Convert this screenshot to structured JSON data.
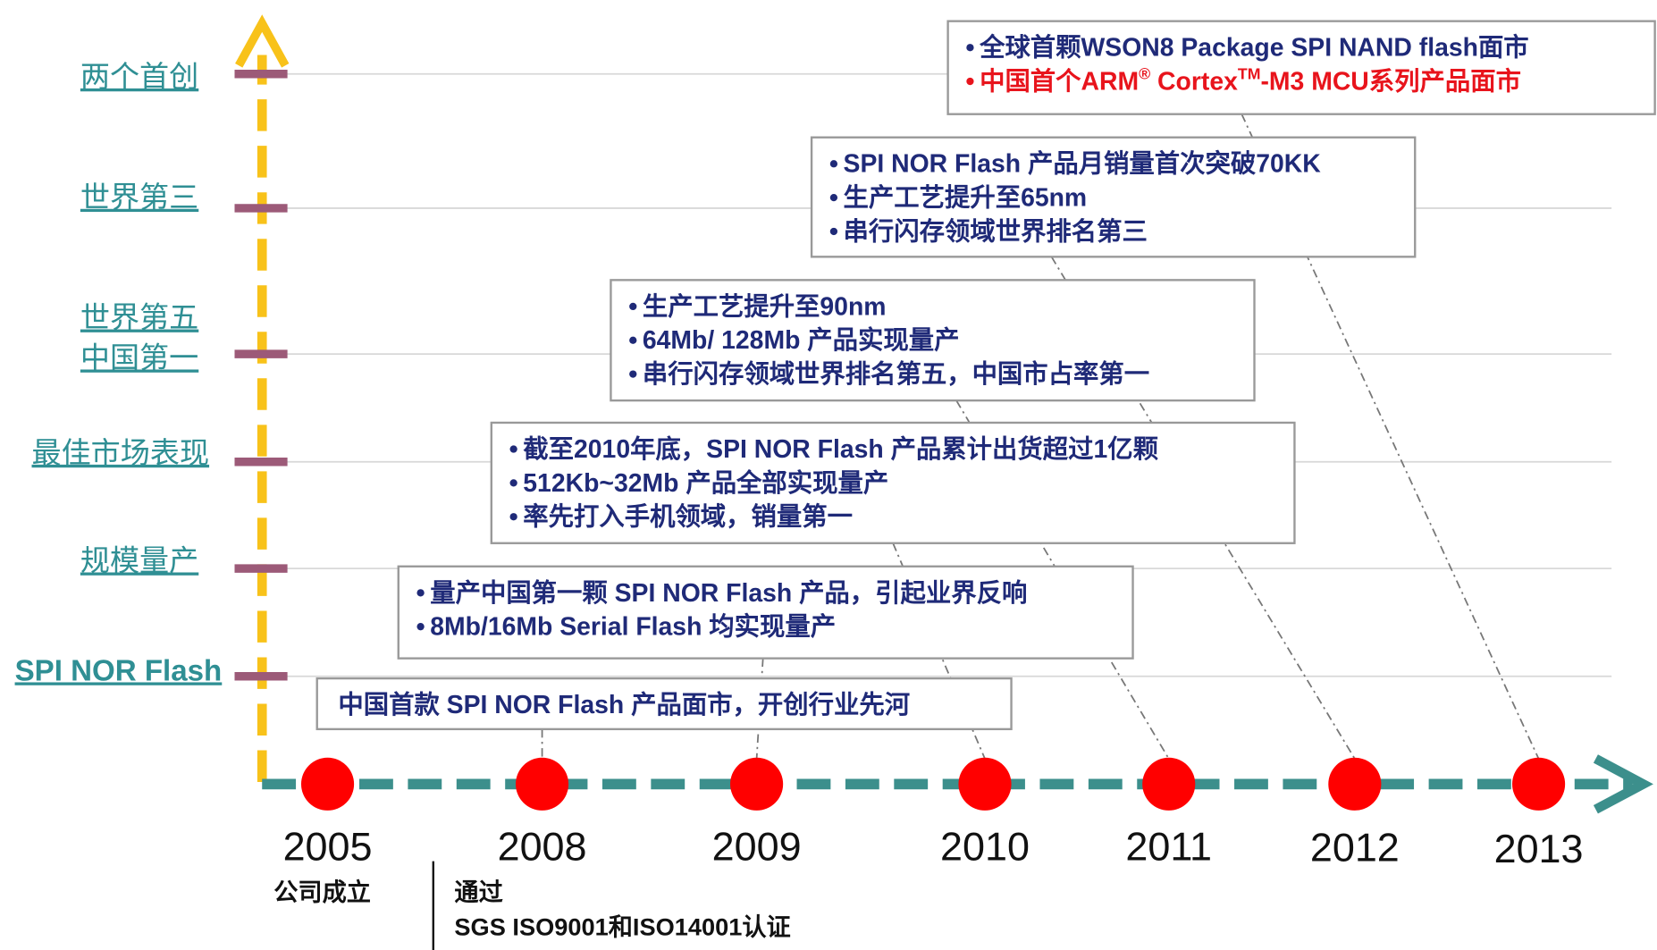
{
  "axis_labels": [
    [
      "两个首创"
    ],
    [
      "世界第三"
    ],
    [
      "世界第五",
      "中国第一"
    ],
    [
      "最佳市场表现"
    ],
    [
      "规模量产"
    ],
    [
      "SPI NOR Flash"
    ]
  ],
  "years": [
    "2005",
    "2008",
    "2009",
    "2010",
    "2011",
    "2012",
    "2013"
  ],
  "milestones": [
    {
      "items": [
        "中国首款 SPI NOR Flash 产品面市，开创行业先河"
      ]
    },
    {
      "items": [
        "量产中国第一颗 SPI NOR Flash 产品，引起业界反响",
        "8Mb/16Mb Serial Flash 均实现量产"
      ]
    },
    {
      "items": [
        "截至2010年底，SPI NOR Flash 产品累计出货超过1亿颗",
        "512Kb~32Mb 产品全部实现量产",
        "率先打入手机领域，销量第一"
      ]
    },
    {
      "items": [
        "生产工艺提升至90nm",
        "64Mb/ 128Mb 产品实现量产",
        "串行闪存领域世界排名第五，中国市占率第一"
      ]
    },
    {
      "items": [
        "SPI NOR Flash 产品月销量首次突破70KK",
        "生产工艺提升至65nm",
        "串行闪存领域世界排名第三"
      ]
    },
    {
      "items": [
        "全球首颗WSON8 Package SPI NAND flash面市"
      ],
      "highlight": [
        "中国首个ARM",
        "®",
        " Cortex",
        "TM",
        "-M3 MCU系列产品面市"
      ]
    }
  ],
  "notes": {
    "founding": "公司成立",
    "cert_title": "通过",
    "cert": "SGS ISO9001和ISO14001认证"
  }
}
